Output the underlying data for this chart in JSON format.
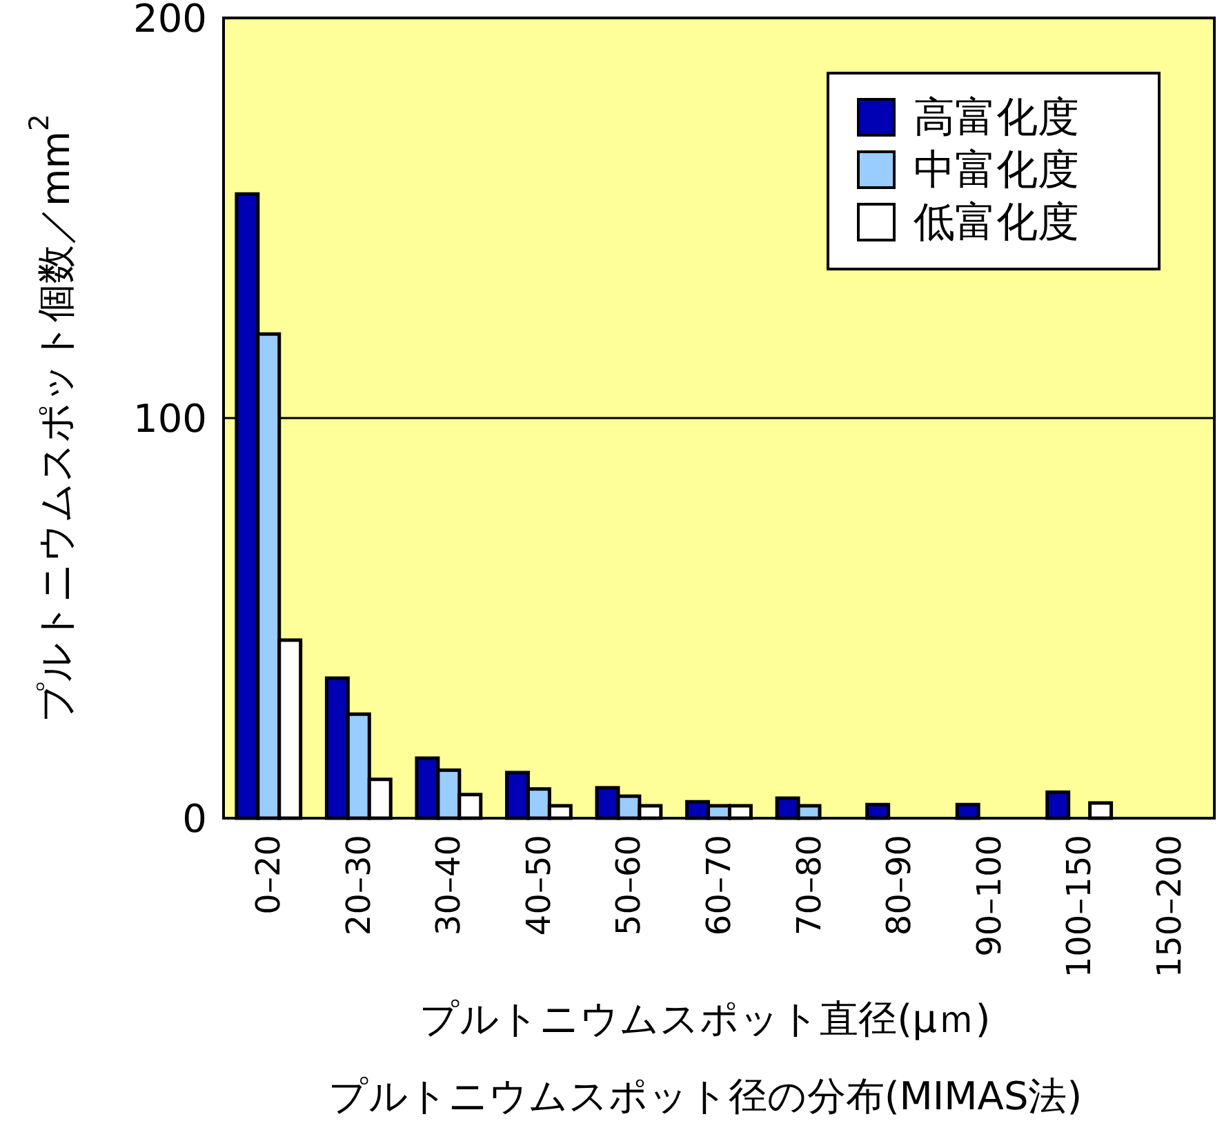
{
  "chart_data": {
    "type": "bar",
    "title": "プルトニウムスポット径の分布(MIMAS法)",
    "xlabel": "プルトニウムスポット直径(μｍ)",
    "ylabel": "プルトニウムスポット個数／mm$^{2}$",
    "categories": [
      "0–20",
      "20–30",
      "30–40",
      "40–50",
      "50–60",
      "60–70",
      "70–80",
      "80–90",
      "90–100",
      "100–150",
      "150–200"
    ],
    "series": [
      {
        "name": "高富化度",
        "color": "#0000b4",
        "values": [
          156,
          35,
          15,
          11.4,
          7.6,
          4.1,
          5,
          3.4,
          3.4,
          6.5,
          null
        ]
      },
      {
        "name": "中富化度",
        "color": "#99ccff",
        "values": [
          121,
          26,
          12,
          7.3,
          5.5,
          3.1,
          3.1,
          null,
          null,
          null,
          null
        ]
      },
      {
        "name": "低富化度",
        "color": "#ffffff",
        "values": [
          44.5,
          9.7,
          5.9,
          3.1,
          3.1,
          3.1,
          null,
          null,
          null,
          3.8,
          null
        ]
      }
    ],
    "ylim": [
      0,
      200
    ],
    "yticks": [
      0,
      100,
      200
    ],
    "grid": "y",
    "legend": "top right"
  }
}
